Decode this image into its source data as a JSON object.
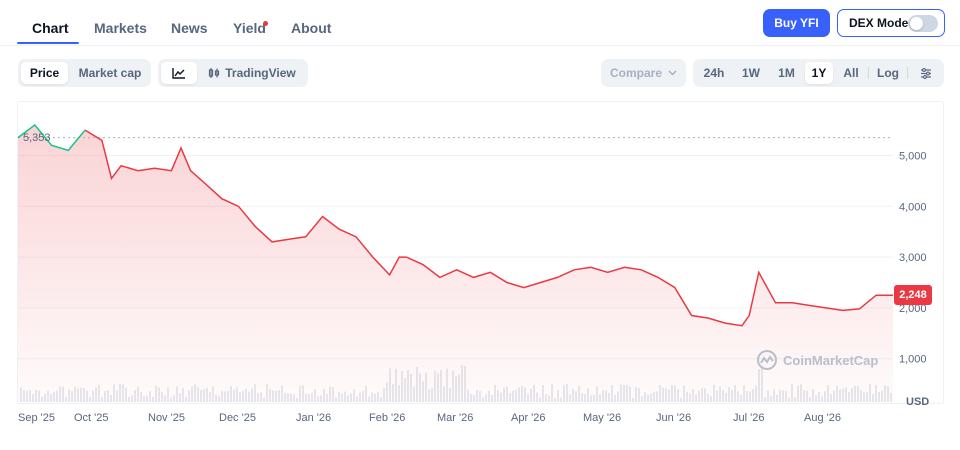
{
  "nav": {
    "tabs": [
      {
        "label": "Chart",
        "active": true
      },
      {
        "label": "Markets"
      },
      {
        "label": "News"
      },
      {
        "label": "Yield",
        "badge": true
      },
      {
        "label": "About"
      }
    ],
    "buy_label": "Buy YFI",
    "dex_mode_label": "DEX Mode",
    "dex_mode_on": false
  },
  "controls": {
    "metric_tabs": [
      "Price",
      "Market cap"
    ],
    "metric_active": "Price",
    "chart_type": {
      "line_icon": "line-chart-icon",
      "tradingview_label": "TradingView"
    },
    "compare_label": "Compare",
    "ranges": [
      "24h",
      "1W",
      "1M",
      "1Y",
      "All"
    ],
    "range_active": "1Y",
    "log_label": "Log",
    "settings_icon": "sliders-icon"
  },
  "chart_data": {
    "type": "line",
    "currency_label": "USD",
    "start_price_label": "5,353",
    "current_price_label": "2,248",
    "reference_line_value": 5353,
    "y_ticks": [
      "5,000",
      "4,000",
      "3,000",
      "2,000",
      "1,000"
    ],
    "y_tick_values": [
      5000,
      4000,
      3000,
      2000,
      1000
    ],
    "ylim": [
      0,
      6000
    ],
    "x_ticks": [
      "Sep '25",
      "Oct '25",
      "Nov '25",
      "Dec '25",
      "Jan '26",
      "Feb '26",
      "Mar '26",
      "Apr '26",
      "May '26",
      "Jun '26",
      "Jul '26",
      "Aug '26"
    ],
    "series": [
      {
        "x": [
          "2025-09-01",
          "2025-09-08",
          "2025-09-15",
          "2025-09-22",
          "2025-09-29",
          "2025-10-06",
          "2025-10-10",
          "2025-10-14",
          "2025-10-21",
          "2025-10-28",
          "2025-11-04",
          "2025-11-08",
          "2025-11-12",
          "2025-11-18",
          "2025-11-25",
          "2025-12-02",
          "2025-12-09",
          "2025-12-16",
          "2025-12-23",
          "2025-12-30",
          "2026-01-06",
          "2026-01-13",
          "2026-01-20",
          "2026-01-27",
          "2026-02-03",
          "2026-02-07",
          "2026-02-10",
          "2026-02-17",
          "2026-02-24",
          "2026-03-03",
          "2026-03-10",
          "2026-03-17",
          "2026-03-24",
          "2026-03-31",
          "2026-04-07",
          "2026-04-14",
          "2026-04-21",
          "2026-04-28",
          "2026-05-05",
          "2026-05-12",
          "2026-05-19",
          "2026-05-26",
          "2026-06-02",
          "2026-06-09",
          "2026-06-16",
          "2026-06-23",
          "2026-06-30",
          "2026-07-03",
          "2026-07-07",
          "2026-07-14",
          "2026-07-21",
          "2026-07-28",
          "2026-08-04",
          "2026-08-11",
          "2026-08-18",
          "2026-08-25",
          "2026-09-01"
        ],
        "values": [
          5353,
          5600,
          5200,
          5100,
          5500,
          5300,
          4550,
          4800,
          4700,
          4750,
          4700,
          5150,
          4700,
          4450,
          4150,
          4000,
          3600,
          3300,
          3350,
          3400,
          3800,
          3550,
          3400,
          3000,
          2650,
          3000,
          3000,
          2850,
          2600,
          2750,
          2600,
          2700,
          2500,
          2400,
          2500,
          2600,
          2750,
          2800,
          2700,
          2800,
          2750,
          2600,
          2400,
          1850,
          1800,
          1700,
          1650,
          1850,
          2700,
          2100,
          2100,
          2050,
          2000,
          1950,
          1980,
          2250,
          2248
        ]
      }
    ],
    "watermark": "CoinMarketCap"
  }
}
